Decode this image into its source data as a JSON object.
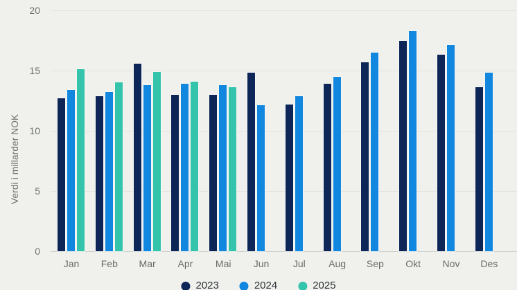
{
  "chart_data": {
    "type": "bar",
    "title": "",
    "xlabel": "",
    "ylabel": "Verdi i millarder NOK",
    "ylim": [
      0,
      20
    ],
    "yticks": [
      0,
      5,
      10,
      15,
      20
    ],
    "grid": true,
    "legend_position": "bottom",
    "categories": [
      "Jan",
      "Feb",
      "Mar",
      "Apr",
      "Mai",
      "Jun",
      "Jul",
      "Aug",
      "Sep",
      "Okt",
      "Nov",
      "Des"
    ],
    "series": [
      {
        "name": "2023",
        "color": "#0e2557",
        "values": [
          12.7,
          12.9,
          15.6,
          13.0,
          13.0,
          14.8,
          12.2,
          13.9,
          15.7,
          17.5,
          16.3,
          13.6
        ]
      },
      {
        "name": "2024",
        "color": "#1287e0",
        "values": [
          13.4,
          13.2,
          13.8,
          13.9,
          13.8,
          12.1,
          12.9,
          14.5,
          16.5,
          18.3,
          17.1,
          14.8
        ]
      },
      {
        "name": "2025",
        "color": "#34c3ab",
        "values": [
          15.1,
          14.0,
          14.9,
          14.1,
          13.6,
          null,
          null,
          null,
          null,
          null,
          null,
          null
        ]
      }
    ]
  },
  "colors": {
    "background": "#f0f1ed",
    "gridline": "#e1e4df",
    "baseline": "#cbcec9",
    "axis_text": "#6e726f",
    "legend_text": "#2e3237"
  }
}
